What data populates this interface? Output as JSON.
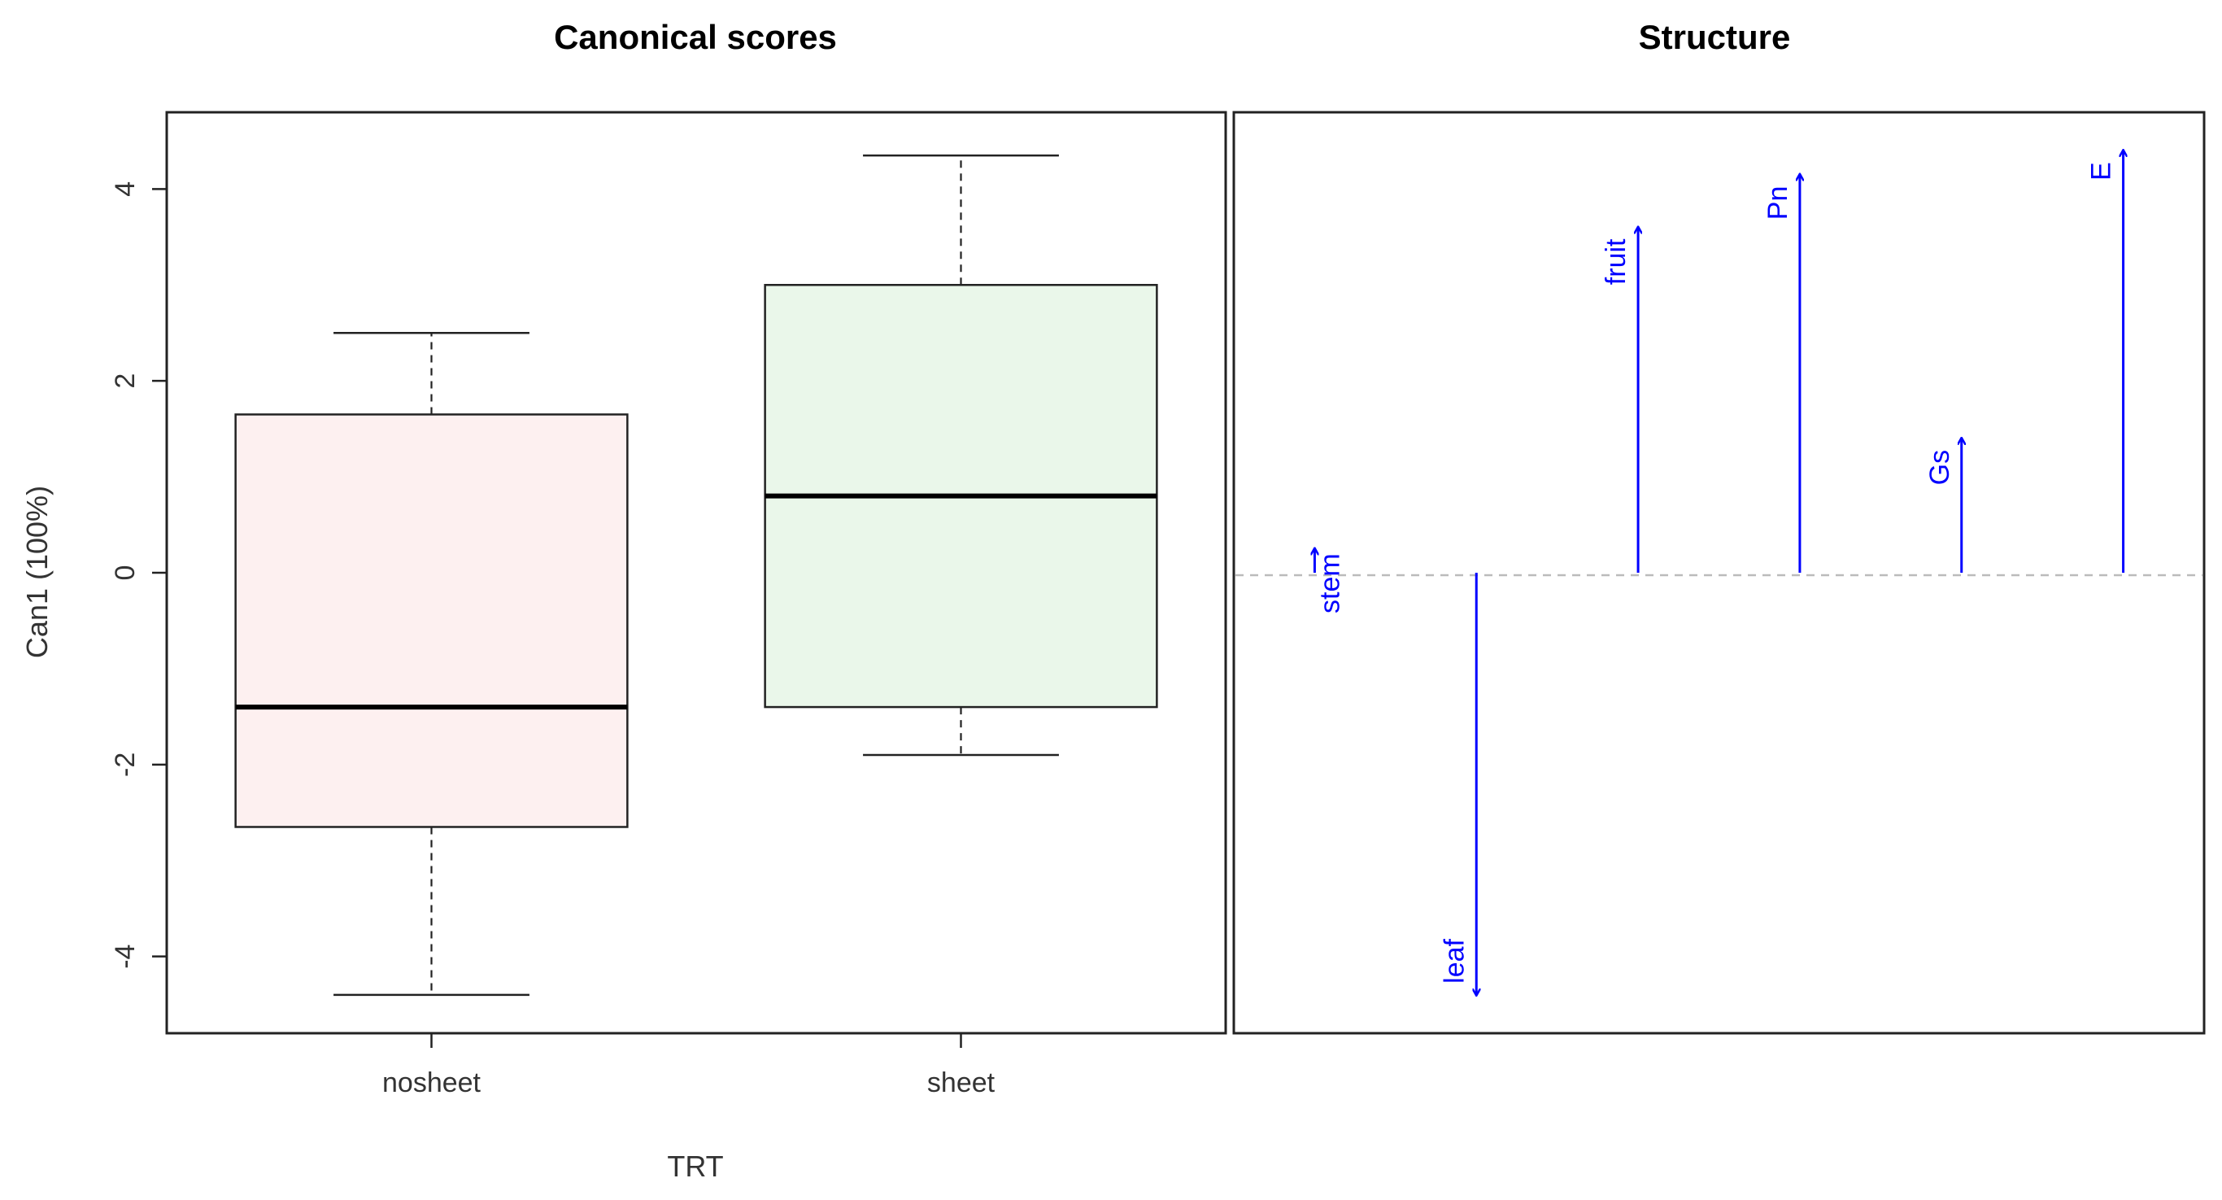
{
  "chart_data": [
    {
      "type": "boxplot",
      "title": "Canonical scores",
      "xlabel": "TRT",
      "ylabel": "Can1 (100%)",
      "ylim": [
        -4.8,
        4.8
      ],
      "yticks": [
        -4,
        -2,
        0,
        2,
        4
      ],
      "categories": [
        "nosheet",
        "sheet"
      ],
      "boxes": [
        {
          "category": "nosheet",
          "whisker_low": -4.4,
          "q1": -2.65,
          "median": -1.4,
          "q3": 1.65,
          "whisker_high": 2.5,
          "fill": "#fdf0f0"
        },
        {
          "category": "sheet",
          "whisker_low": -1.9,
          "q1": -1.4,
          "median": 0.8,
          "q3": 3.0,
          "whisker_high": 4.35,
          "fill": "#eaf7ea"
        }
      ],
      "grid": false
    },
    {
      "type": "vector",
      "title": "Structure",
      "ylim": [
        -4.8,
        4.8
      ],
      "baseline": 0,
      "arrow_color": "#0000ff",
      "vectors": [
        {
          "label": "stem",
          "value": 0.25
        },
        {
          "label": "leaf",
          "value": -4.4
        },
        {
          "label": "fruit",
          "value": 3.6
        },
        {
          "label": "Pn",
          "value": 4.15
        },
        {
          "label": "Gs",
          "value": 1.4
        },
        {
          "label": "E",
          "value": 4.4
        }
      ]
    }
  ]
}
